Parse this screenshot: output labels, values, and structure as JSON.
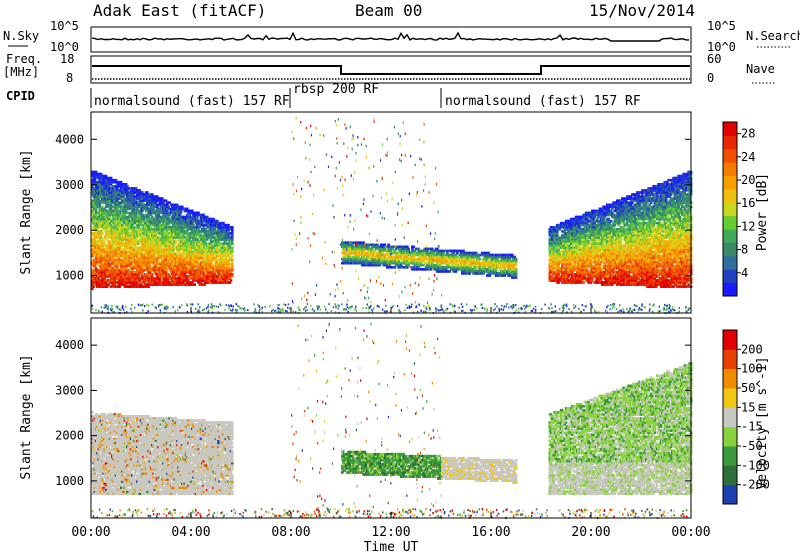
{
  "header": {
    "station": "Adak East (fitACF)",
    "beam": "Beam 00",
    "date": "15/Nov/2014"
  },
  "nsky_panel": {
    "left_label": "N.Sky",
    "right_label": "N.Search",
    "left_ticks": [
      "10^5",
      "10^0"
    ],
    "right_ticks": [
      "10^5",
      "10^0"
    ]
  },
  "freq_panel": {
    "left_label_top": "Freq.",
    "left_label_unit": "[MHz]",
    "right_label": "Nave",
    "left_ticks": [
      "18",
      "8"
    ],
    "right_ticks": [
      "60",
      "0"
    ]
  },
  "cpid": {
    "label": "CPID",
    "segments": [
      {
        "name": "normalsound (fast) 157 RF",
        "start_h": 0,
        "end_h": 8
      },
      {
        "name": "rbsp 200 RF",
        "start_h": 8,
        "end_h": 14
      },
      {
        "name": "normalsound (fast) 157 RF",
        "start_h": 14,
        "end_h": 24
      }
    ]
  },
  "chart_data": [
    {
      "type": "heatmap",
      "title": "",
      "quantity": "Power",
      "xlabel": "Time UT",
      "ylabel": "Slant Range [km]",
      "xlim_hours": [
        0,
        24
      ],
      "ylim_km": [
        180,
        4600
      ],
      "y_ticks": [
        "1000",
        "2000",
        "3000",
        "4000"
      ],
      "colorbar": {
        "label": "Power [dB]",
        "ticks": [
          "4",
          "8",
          "12",
          "16",
          "20",
          "24",
          "28"
        ],
        "range": [
          0,
          30
        ],
        "colors": [
          "#1a1aff",
          "#2040c0",
          "#2e6f9e",
          "#3a8a6a",
          "#3faa5a",
          "#66cc33",
          "#c8d81e",
          "#f0c010",
          "#f8a000",
          "#f57a00",
          "#f05000",
          "#e82800",
          "#e00000"
        ]
      },
      "regions": [
        {
          "name": "morning ionospheric scatter",
          "time_h": [
            0,
            5.6
          ],
          "range_km": [
            700,
            3300
          ],
          "power_db": [
            8,
            30
          ]
        },
        {
          "name": "midday scatter band",
          "time_h": [
            10,
            17
          ],
          "range_km": [
            1000,
            1700
          ],
          "power_db": [
            4,
            20
          ]
        },
        {
          "name": "evening ionospheric scatter",
          "time_h": [
            18.3,
            24
          ],
          "range_km": [
            700,
            3300
          ],
          "power_db": [
            8,
            30
          ]
        }
      ]
    },
    {
      "type": "heatmap",
      "title": "",
      "quantity": "Velocity",
      "xlabel": "Time UT",
      "ylabel": "Slant Range [km]",
      "xlim_hours": [
        0,
        24
      ],
      "ylim_km": [
        180,
        4600
      ],
      "y_ticks": [
        "1000",
        "2000",
        "3000",
        "4000"
      ],
      "x_ticks": [
        "00:00",
        "04:00",
        "08:00",
        "12:00",
        "16:00",
        "20:00",
        "00:00"
      ],
      "colorbar": {
        "label": "Velocity [m s^-1]",
        "ticks": [
          "200",
          "100",
          "50",
          "15",
          "-15",
          "-50",
          "-100",
          "-200"
        ],
        "colors": [
          "#1f3fb0",
          "#2c6f3a",
          "#3a9a3a",
          "#88d33c",
          "#c8c8c0",
          "#f0c814",
          "#f08c00",
          "#e84000",
          "#e00000"
        ]
      },
      "regions": [
        {
          "name": "morning ground scatter",
          "time_h": [
            0,
            5.6
          ],
          "range_km": [
            700,
            2500
          ],
          "velocity_ms": [
            -15,
            15
          ]
        },
        {
          "name": "midday scatter band",
          "time_h": [
            10,
            17
          ],
          "range_km": [
            1000,
            1800
          ],
          "velocity_ms": [
            -50,
            100
          ]
        },
        {
          "name": "evening scatter",
          "time_h": [
            18.3,
            24
          ],
          "range_km": [
            700,
            3500
          ],
          "velocity_ms": [
            -15,
            100
          ]
        }
      ]
    }
  ],
  "xaxis": {
    "label": "Time UT",
    "ticks": [
      "00:00",
      "04:00",
      "08:00",
      "12:00",
      "16:00",
      "20:00",
      "00:00"
    ]
  }
}
